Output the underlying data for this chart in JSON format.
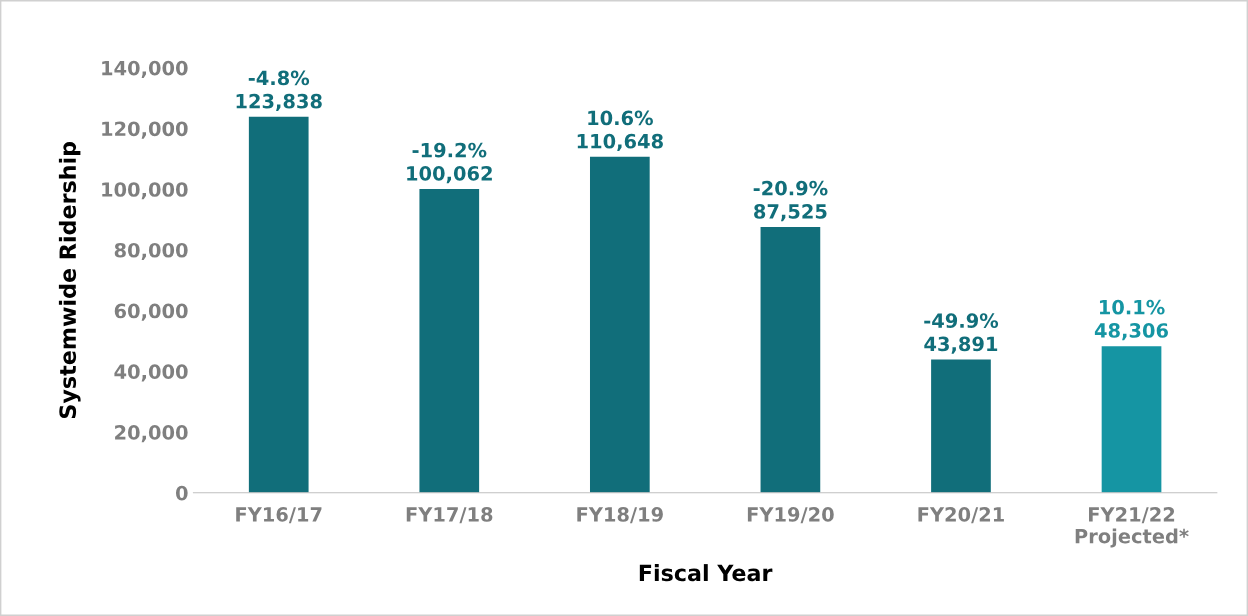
{
  "chart_data": {
    "type": "bar",
    "xlabel": "Fiscal Year",
    "ylabel": "Systemwide Ridership",
    "categories": [
      "FY16/17",
      "FY17/18",
      "FY18/19",
      "FY19/20",
      "FY20/21",
      "FY21/22\nProjected*"
    ],
    "values": [
      123838,
      100062,
      110648,
      87525,
      43891,
      48306
    ],
    "colors": [
      "#116e7a",
      "#116e7a",
      "#116e7a",
      "#116e7a",
      "#116e7a",
      "#1595a3"
    ],
    "value_labels": [
      "-4.8%\n123,838",
      "-19.2%\n100,062",
      "10.6%\n110,648",
      "-20.9%\n87,525",
      "-49.9%\n43,891",
      "10.1%\n48,306"
    ],
    "ylim": [
      0,
      140000
    ],
    "yticks": [
      {
        "value": 0,
        "label": "0"
      },
      {
        "value": 20000,
        "label": "20,000"
      },
      {
        "value": 40000,
        "label": "40,000"
      },
      {
        "value": 60000,
        "label": "60,000"
      },
      {
        "value": 80000,
        "label": "80,000"
      },
      {
        "value": 100000,
        "label": "100,000"
      },
      {
        "value": 120000,
        "label": "120,000"
      },
      {
        "value": 140000,
        "label": "140,000"
      }
    ],
    "grid": false,
    "legend": false
  }
}
